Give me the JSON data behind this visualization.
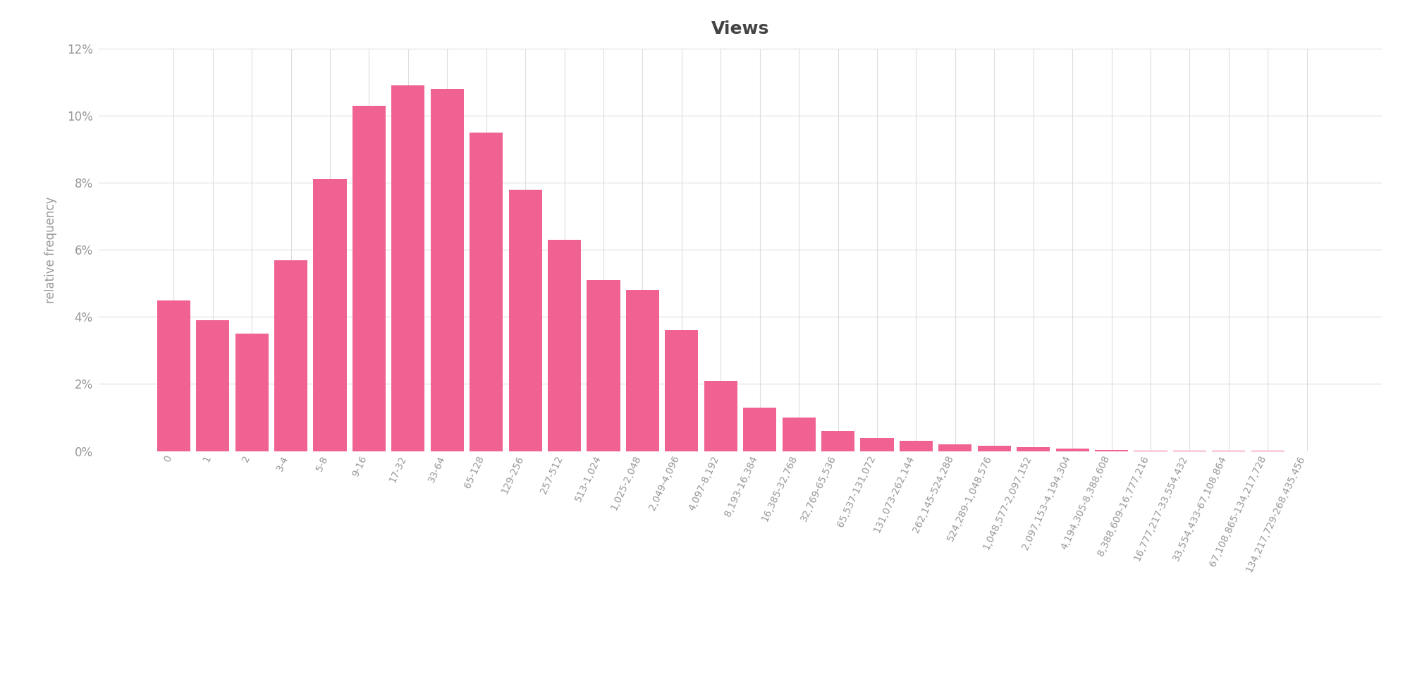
{
  "title": "Views",
  "ylabel": "relative frequency",
  "bar_color": "#f06292",
  "background_color": "#ffffff",
  "grid_color": "#dddddd",
  "categories": [
    "0",
    "1",
    "2",
    "3-4",
    "5-8",
    "9-16",
    "17-32",
    "33-64",
    "65-128",
    "129-256",
    "257-512",
    "513-1,024",
    "1,025-2,048",
    "2,049-4,096",
    "4,097-8,192",
    "8,193-16,384",
    "16,385-32,768",
    "32,769-65,536",
    "65,537-131,072",
    "131,073-262,144",
    "262,145-524,288",
    "524,289-1,048,576",
    "1,048,577-2,097,152",
    "2,097,153-4,194,304",
    "4,194,305-8,388,608",
    "8,388,609-16,777,216",
    "16,777,217-33,554,432",
    "33,554,433-67,108,864",
    "67,108,865-134,217,728",
    "134,217,729-268,435,456"
  ],
  "values": [
    0.045,
    0.039,
    0.035,
    0.057,
    0.081,
    0.103,
    0.109,
    0.108,
    0.095,
    0.078,
    0.063,
    0.051,
    0.048,
    0.036,
    0.021,
    0.013,
    0.01,
    0.006,
    0.004,
    0.003,
    0.002,
    0.0015,
    0.0012,
    0.0007,
    0.0004,
    0.0002,
    0.00012,
    7e-05,
    4e-05,
    2e-05
  ],
  "ylim": [
    0,
    0.12
  ],
  "yticks": [
    0,
    0.02,
    0.04,
    0.06,
    0.08,
    0.1,
    0.12
  ],
  "title_fontsize": 18,
  "ylabel_fontsize": 12,
  "tick_label_fontsize": 10,
  "ytick_fontsize": 12
}
